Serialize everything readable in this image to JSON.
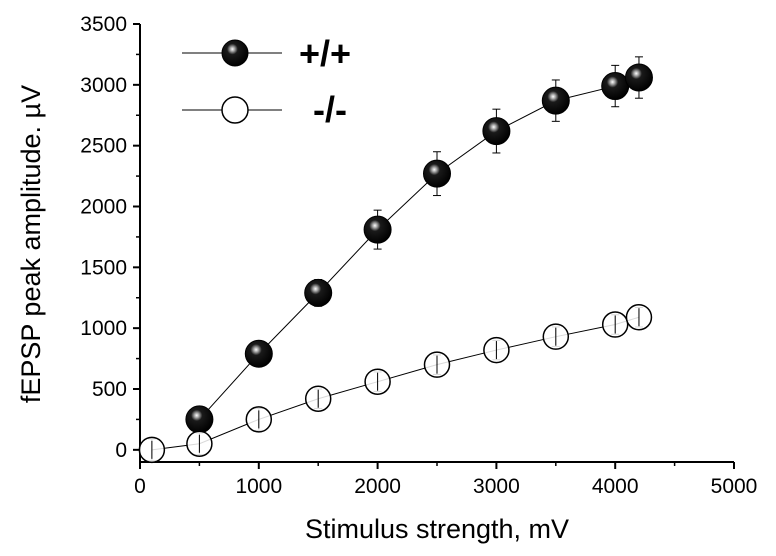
{
  "chart_data": {
    "type": "scatter",
    "xlabel": "Stimulus strength, mV",
    "ylabel": "fEPSP peak amplitude. µV",
    "xlim": [
      0,
      5000
    ],
    "ylim": [
      -100,
      3500
    ],
    "x_ticks": [
      0,
      1000,
      2000,
      3000,
      4000,
      5000
    ],
    "y_ticks": [
      0,
      500,
      1000,
      1500,
      2000,
      2500,
      3000,
      3500
    ],
    "x_tick_labels": [
      "0",
      "1000",
      "2000",
      "3000",
      "4000",
      "5000"
    ],
    "y_tick_labels": [
      "0",
      "500",
      "1000",
      "1500",
      "2000",
      "2500",
      "3000",
      "3500"
    ],
    "legend_position": "top-left",
    "grid": false,
    "series": [
      {
        "name": "+/+",
        "marker": "filled-sphere",
        "color": "#000000",
        "x": [
          500,
          1000,
          1500,
          2000,
          2500,
          3000,
          3500,
          4000,
          4200
        ],
        "y": [
          250,
          790,
          1290,
          1810,
          2270,
          2620,
          2870,
          2990,
          3060
        ],
        "error": [
          60,
          60,
          110,
          160,
          180,
          180,
          170,
          170,
          170
        ]
      },
      {
        "name": "-/-",
        "marker": "open-circle",
        "color": "#000000",
        "x": [
          100,
          500,
          1000,
          1500,
          2000,
          2500,
          3000,
          3500,
          4000,
          4200
        ],
        "y": [
          0,
          50,
          250,
          420,
          560,
          700,
          820,
          930,
          1030,
          1090
        ],
        "error": [
          90,
          90,
          90,
          80,
          80,
          80,
          80,
          80,
          80,
          80
        ]
      }
    ]
  }
}
